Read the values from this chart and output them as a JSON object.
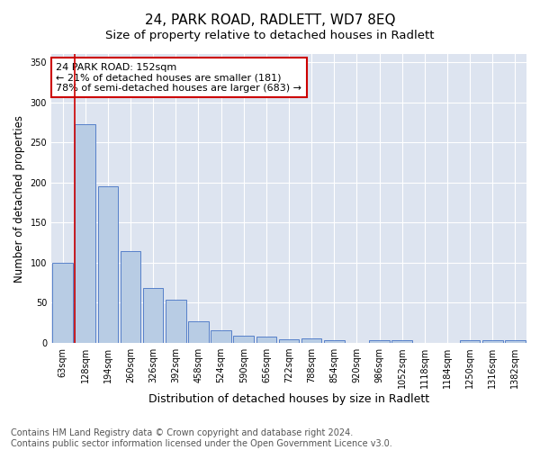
{
  "title": "24, PARK ROAD, RADLETT, WD7 8EQ",
  "subtitle": "Size of property relative to detached houses in Radlett",
  "xlabel": "Distribution of detached houses by size in Radlett",
  "ylabel": "Number of detached properties",
  "bar_categories": [
    "63sqm",
    "128sqm",
    "194sqm",
    "260sqm",
    "326sqm",
    "392sqm",
    "458sqm",
    "524sqm",
    "590sqm",
    "656sqm",
    "722sqm",
    "788sqm",
    "854sqm",
    "920sqm",
    "986sqm",
    "1052sqm",
    "1118sqm",
    "1184sqm",
    "1250sqm",
    "1316sqm",
    "1382sqm"
  ],
  "bar_values": [
    100,
    272,
    195,
    115,
    68,
    54,
    27,
    16,
    9,
    8,
    5,
    6,
    3,
    0,
    3,
    3,
    0,
    0,
    4,
    3,
    3
  ],
  "bar_color": "#b8cce4",
  "bar_edge_color": "#4472c4",
  "annotation_line_color": "#cc0000",
  "annotation_box_text": "24 PARK ROAD: 152sqm\n← 21% of detached houses are smaller (181)\n78% of semi-detached houses are larger (683) →",
  "annotation_box_color": "#cc0000",
  "ylim": [
    0,
    360
  ],
  "yticks": [
    0,
    50,
    100,
    150,
    200,
    250,
    300,
    350
  ],
  "background_color": "#dde4f0",
  "footer_line1": "Contains HM Land Registry data © Crown copyright and database right 2024.",
  "footer_line2": "Contains public sector information licensed under the Open Government Licence v3.0.",
  "title_fontsize": 11,
  "subtitle_fontsize": 9.5,
  "xlabel_fontsize": 9,
  "ylabel_fontsize": 8.5,
  "tick_fontsize": 7,
  "annotation_fontsize": 8,
  "footer_fontsize": 7
}
